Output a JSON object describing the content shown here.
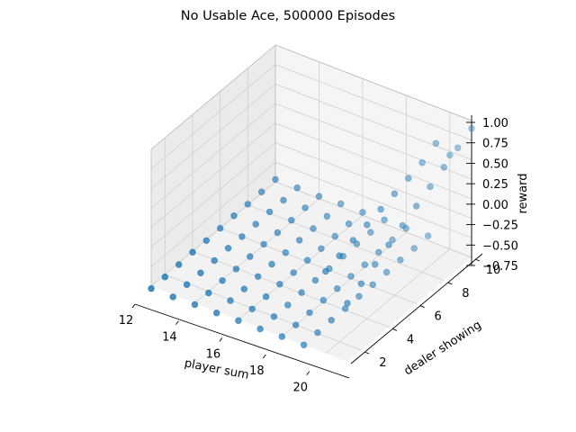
{
  "chart_data": {
    "type": "scatter",
    "title": "No Usable Ace, 500000 Episodes",
    "xlabel": "player sum",
    "ylabel": "dealer showing",
    "zlabel": "reward",
    "xlim": [
      12,
      21
    ],
    "ylim": [
      1,
      10
    ],
    "zlim": [
      -0.75,
      1.0
    ],
    "xticks": [
      "12",
      "14",
      "16",
      "18",
      "20"
    ],
    "yticks": [
      "2",
      "4",
      "6",
      "8",
      "10"
    ],
    "zticks": [
      "1.00",
      "0.75",
      "0.50",
      "0.25",
      "0.00",
      "−0.25",
      "−0.50",
      "−0.75"
    ],
    "marker_color": "#1f77b4",
    "grid": true,
    "points": [
      [
        12,
        1,
        -0.78
      ],
      [
        12,
        2,
        -0.78
      ],
      [
        12,
        3,
        -0.77
      ],
      [
        12,
        4,
        -0.76
      ],
      [
        12,
        5,
        -0.76
      ],
      [
        12,
        6,
        -0.75
      ],
      [
        12,
        7,
        -0.74
      ],
      [
        12,
        8,
        -0.74
      ],
      [
        12,
        9,
        -0.73
      ],
      [
        12,
        10,
        -0.72
      ],
      [
        13,
        1,
        -0.78
      ],
      [
        13,
        2,
        -0.77
      ],
      [
        13,
        3,
        -0.77
      ],
      [
        13,
        4,
        -0.76
      ],
      [
        13,
        5,
        -0.75
      ],
      [
        13,
        6,
        -0.75
      ],
      [
        13,
        7,
        -0.74
      ],
      [
        13,
        8,
        -0.73
      ],
      [
        13,
        9,
        -0.73
      ],
      [
        13,
        10,
        -0.72
      ],
      [
        14,
        1,
        -0.77
      ],
      [
        14,
        2,
        -0.77
      ],
      [
        14,
        3,
        -0.76
      ],
      [
        14,
        4,
        -0.76
      ],
      [
        14,
        5,
        -0.75
      ],
      [
        14,
        6,
        -0.74
      ],
      [
        14,
        7,
        -0.74
      ],
      [
        14,
        8,
        -0.73
      ],
      [
        14,
        9,
        -0.72
      ],
      [
        14,
        10,
        -0.72
      ],
      [
        15,
        1,
        -0.77
      ],
      [
        15,
        2,
        -0.76
      ],
      [
        15,
        3,
        -0.76
      ],
      [
        15,
        4,
        -0.75
      ],
      [
        15,
        5,
        -0.74
      ],
      [
        15,
        6,
        -0.74
      ],
      [
        15,
        7,
        -0.73
      ],
      [
        15,
        8,
        -0.73
      ],
      [
        15,
        9,
        -0.72
      ],
      [
        15,
        10,
        -0.71
      ],
      [
        16,
        1,
        -0.76
      ],
      [
        16,
        2,
        -0.76
      ],
      [
        16,
        3,
        -0.75
      ],
      [
        16,
        4,
        -0.74
      ],
      [
        16,
        5,
        -0.74
      ],
      [
        16,
        6,
        -0.73
      ],
      [
        16,
        7,
        -0.73
      ],
      [
        16,
        8,
        -0.72
      ],
      [
        16,
        9,
        -0.71
      ],
      [
        16,
        10,
        -0.71
      ],
      [
        17,
        1,
        -0.76
      ],
      [
        17,
        2,
        -0.75
      ],
      [
        17,
        3,
        -0.75
      ],
      [
        17,
        4,
        -0.74
      ],
      [
        17,
        5,
        -0.73
      ],
      [
        17,
        6,
        -0.73
      ],
      [
        17,
        7,
        -0.72
      ],
      [
        17,
        8,
        -0.71
      ],
      [
        17,
        9,
        -0.71
      ],
      [
        17,
        10,
        -0.7
      ],
      [
        18,
        1,
        -0.75
      ],
      [
        18,
        2,
        -0.75
      ],
      [
        18,
        3,
        -0.74
      ],
      [
        18,
        4,
        -0.73
      ],
      [
        18,
        5,
        -0.73
      ],
      [
        18,
        6,
        -0.72
      ],
      [
        18,
        7,
        -0.72
      ],
      [
        18,
        8,
        -0.71
      ],
      [
        18,
        9,
        -0.7
      ],
      [
        18,
        10,
        -0.7
      ],
      [
        19,
        1,
        -0.75
      ],
      [
        19,
        2,
        -0.74
      ],
      [
        19,
        3,
        -0.73
      ],
      [
        19,
        4,
        -0.73
      ],
      [
        19,
        5,
        -0.72
      ],
      [
        19,
        6,
        -0.72
      ],
      [
        19,
        7,
        -0.71
      ],
      [
        19,
        8,
        -0.7
      ],
      [
        19,
        9,
        -0.7
      ],
      [
        19,
        10,
        -0.69
      ],
      [
        20,
        1,
        0.3
      ],
      [
        20,
        2,
        0.35
      ],
      [
        20,
        3,
        0.4
      ],
      [
        20,
        4,
        0.45
      ],
      [
        20,
        5,
        0.5
      ],
      [
        20,
        6,
        0.55
      ],
      [
        20,
        7,
        0.6
      ],
      [
        20,
        8,
        0.65
      ],
      [
        20,
        9,
        0.75
      ],
      [
        20,
        10,
        0.45
      ],
      [
        21,
        1,
        0.0
      ],
      [
        21,
        2,
        0.1
      ],
      [
        21,
        3,
        0.2
      ],
      [
        21,
        4,
        0.3
      ],
      [
        21,
        5,
        0.4
      ],
      [
        21,
        6,
        0.5
      ],
      [
        21,
        7,
        0.6
      ],
      [
        21,
        8,
        0.7
      ],
      [
        21,
        9,
        0.8
      ],
      [
        21,
        10,
        0.9
      ]
    ]
  }
}
